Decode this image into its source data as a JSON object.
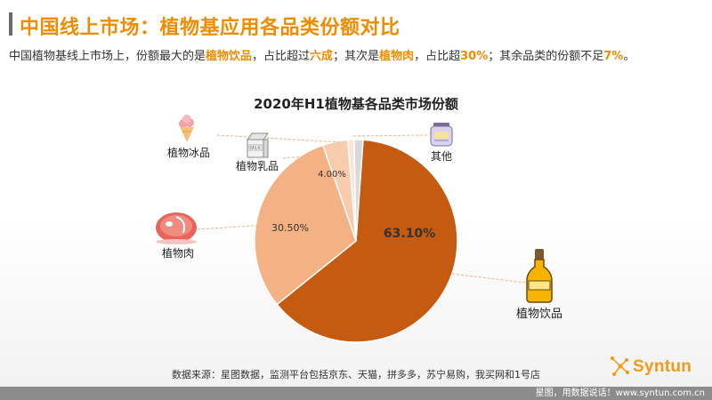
{
  "header": {
    "title": "中国线上市场：植物基应用各品类份额对比"
  },
  "summary": {
    "part1": "中国植物基线上市场上，份额最大的是",
    "hl1": "植物饮品",
    "part2": "，占比超过",
    "hl2": "六成",
    "part3": "；其次是",
    "hl3": "植物肉",
    "part4": "，占比超",
    "hl4": "30%",
    "part5": "；其余品类的份额不足",
    "hl5": "7%",
    "part6": "。"
  },
  "chart_data": {
    "type": "pie",
    "title": "2020年H1植物基各品类市场份额",
    "slices": [
      {
        "name": "植物饮品",
        "value": 63.1,
        "label": "63.10%",
        "color": "#c55a11"
      },
      {
        "name": "植物肉",
        "value": 30.5,
        "label": "30.50%",
        "color": "#f4b183"
      },
      {
        "name": "植物乳品",
        "value": 4.0,
        "label": "4.00%",
        "color": "#f8cbad"
      },
      {
        "name": "植物冰品",
        "value": 1.0,
        "label": "",
        "color": "#fbe5d6"
      },
      {
        "name": "其他",
        "value": 1.4,
        "label": "",
        "color": "#d9d9d9"
      }
    ]
  },
  "source": "数据来源：星图数据，监测平台包括京东、天猫，拼多多，苏宁易购，我买网和1号店",
  "footer": {
    "text": "星图，用数据说话！www.syntun.com.cn"
  },
  "brand": {
    "logo_text": "Syntun"
  },
  "colors": {
    "accent": "#f08c00",
    "drink": "#c55a11",
    "meat": "#f4b183",
    "dairy": "#f8cbad",
    "ice": "#fbe5d6",
    "other": "#d9d9d9"
  }
}
